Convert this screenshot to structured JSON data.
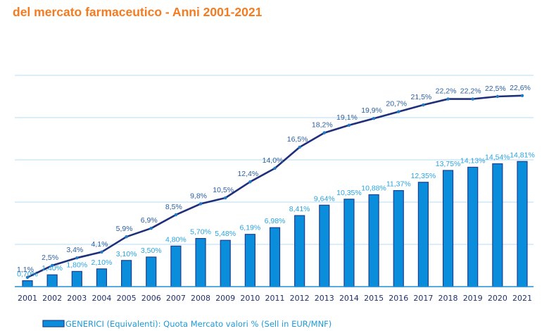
{
  "title": {
    "line1": "",
    "line2": "del mercato farmaceutico - Anni 2001-2021"
  },
  "chart_data": {
    "type": "bar",
    "title": "del mercato farmaceutico - Anni 2001-2021",
    "xlabel": "",
    "ylabel": "",
    "ylim": [
      0,
      25
    ],
    "grid": true,
    "gridlines": [
      5,
      10,
      15,
      20,
      25
    ],
    "legend_position": "bottom",
    "categories": [
      "2001",
      "2002",
      "2003",
      "2004",
      "2005",
      "2006",
      "2007",
      "2008",
      "2009",
      "2010",
      "2011",
      "2012",
      "2013",
      "2014",
      "2015",
      "2016",
      "2017",
      "2018",
      "2019",
      "2020",
      "2021"
    ],
    "series": [
      {
        "name": "GENERICI (Equivalenti): Quota Mercato valori % (Sell in EUR/MNF)",
        "type": "bar",
        "color": "#0a8ddb",
        "values": [
          0.7,
          1.4,
          1.8,
          2.1,
          3.1,
          3.5,
          4.8,
          5.7,
          5.48,
          6.19,
          6.98,
          8.41,
          9.64,
          10.35,
          10.88,
          11.37,
          12.35,
          13.75,
          14.13,
          14.54,
          14.81
        ],
        "labels": [
          "0,70%",
          "1,40%",
          "1,80%",
          "2,10%",
          "3,10%",
          "3,50%",
          "4,80%",
          "5,70%",
          "5,48%",
          "6,19%",
          "6,98%",
          "8,41%",
          "9,64%",
          "10,35%",
          "10,88%",
          "11,37%",
          "12,35%",
          "13,75%",
          "14,13%",
          "14,54%",
          "14,81%"
        ]
      },
      {
        "name": "line",
        "type": "line",
        "color": "#1f2f7a",
        "values": [
          1.1,
          2.5,
          3.4,
          4.1,
          5.9,
          6.9,
          8.5,
          9.8,
          10.5,
          12.4,
          14.0,
          16.5,
          18.2,
          19.1,
          19.9,
          20.7,
          21.5,
          22.2,
          22.2,
          22.5,
          22.6
        ],
        "labels": [
          "1,1%",
          "2,5%",
          "3,4%",
          "4,1%",
          "5,9%",
          "6,9%",
          "8,5%",
          "9,8%",
          "10,5%",
          "12,4%",
          "14,0%",
          "16,5%",
          "18,2%",
          "19,1%",
          "19,9%",
          "20,7%",
          "21,5%",
          "22,2%",
          "22,2%",
          "22,5%",
          "22,6%"
        ]
      }
    ]
  },
  "legend": {
    "label": "GENERICI (Equivalenti): Quota Mercato valori % (Sell in EUR/MNF)"
  }
}
